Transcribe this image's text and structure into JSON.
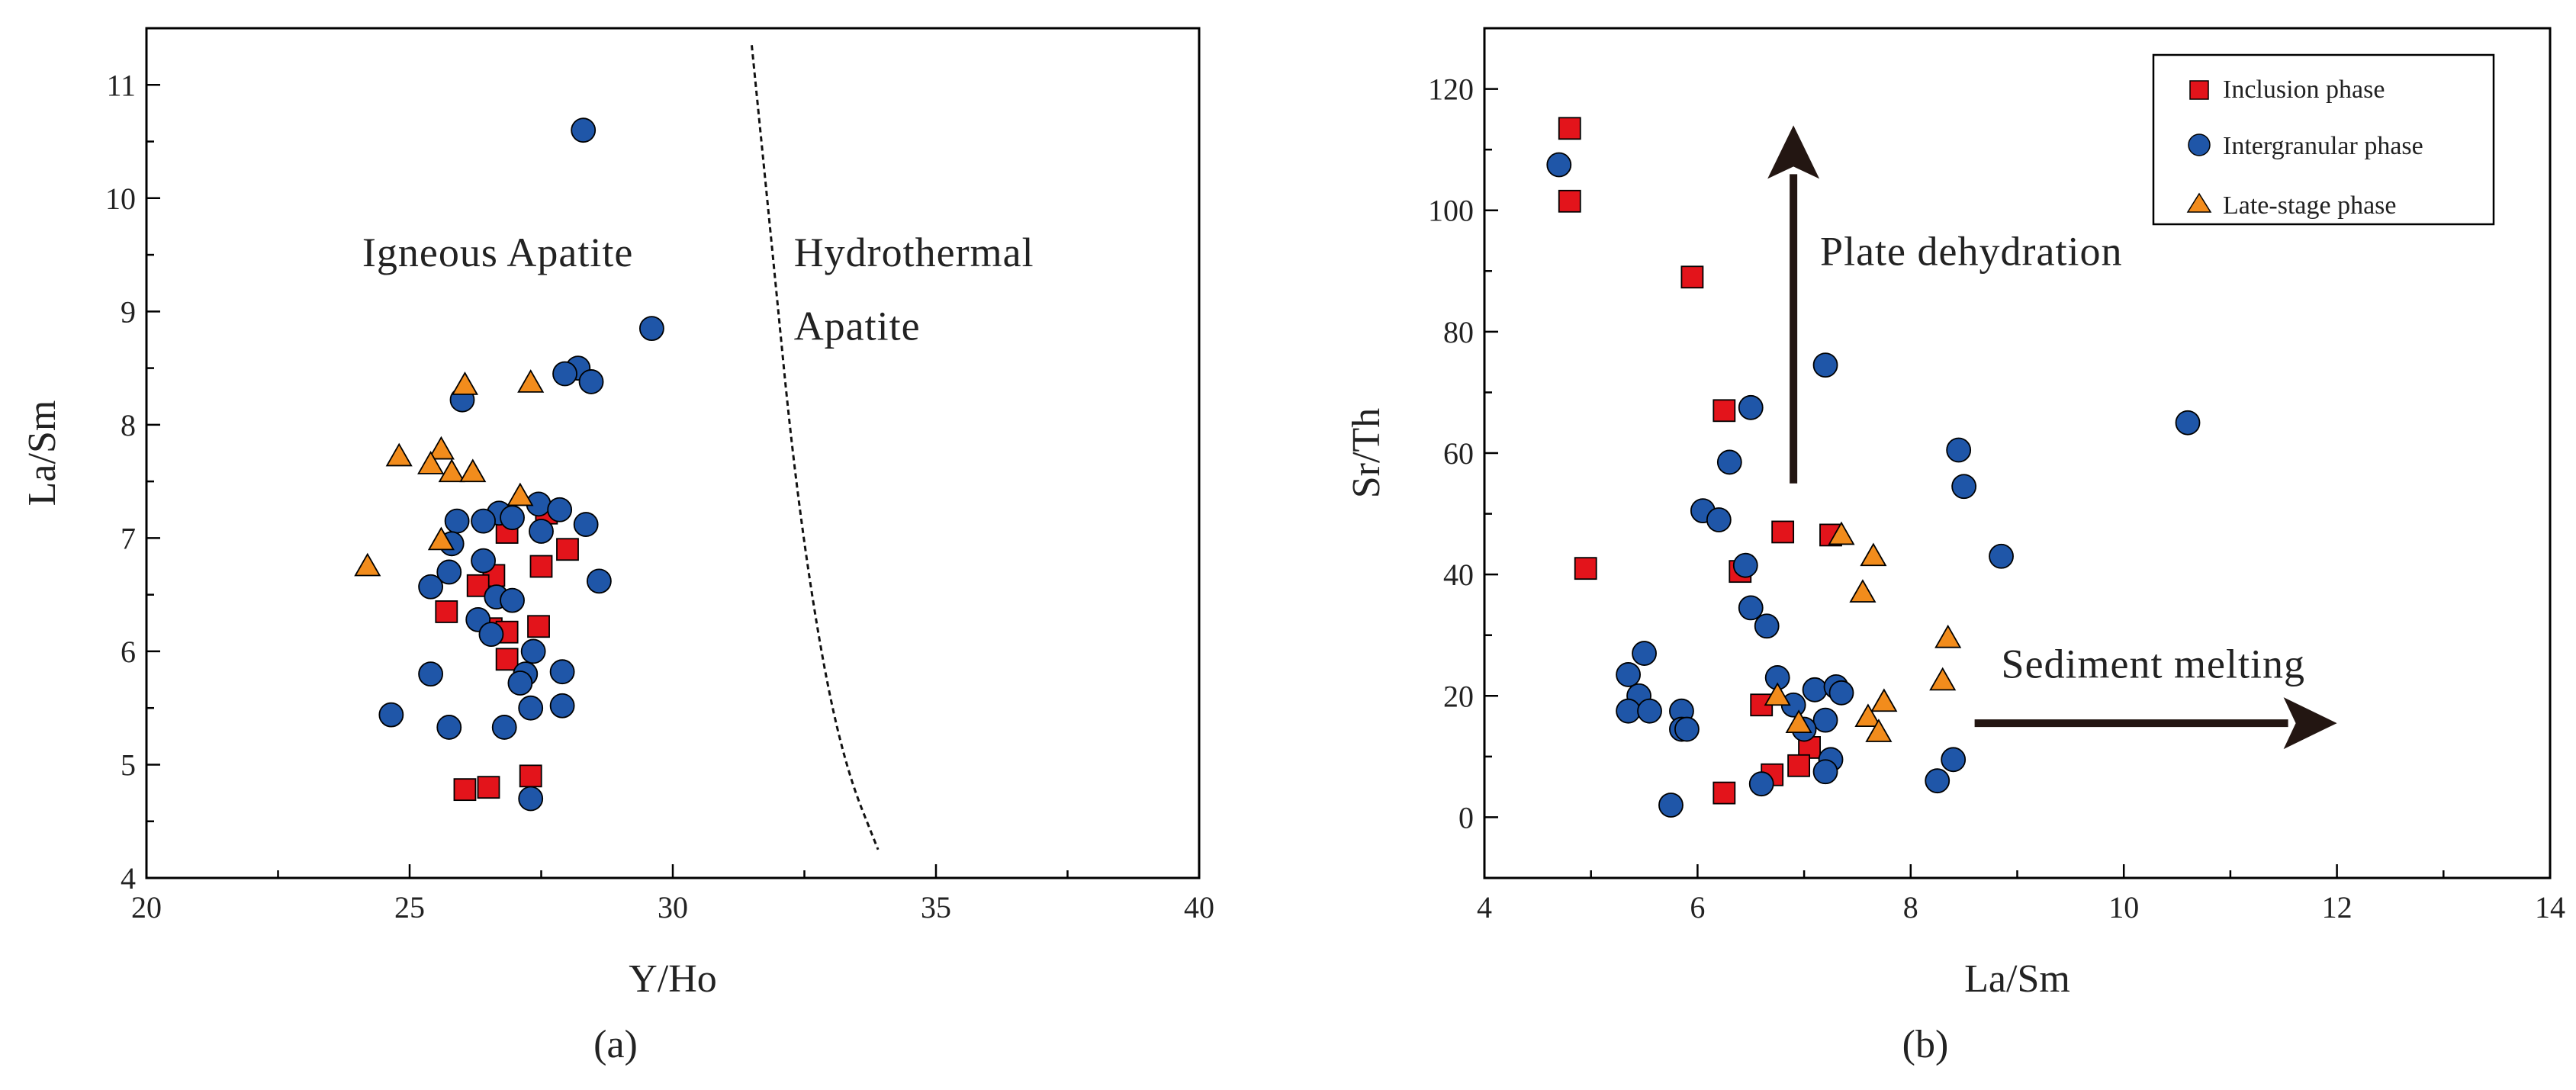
{
  "figure": {
    "panel_a_caption": "(a)",
    "panel_b_caption": "(b)"
  },
  "colors": {
    "inclusion": "#e3141b",
    "intergranular": "#1f56a8",
    "late_stage": "#f28c1c",
    "axis": "#000000",
    "arrow": "#231612"
  },
  "chart_data": [
    {
      "type": "scatter",
      "id": "panel-a",
      "xlabel": "Y/Ho",
      "ylabel": "La/Sm",
      "xlim": [
        20,
        40
      ],
      "ylim": [
        4,
        11.5
      ],
      "xticks": [
        20,
        25,
        30,
        35,
        40
      ],
      "yticks": [
        4,
        5,
        6,
        7,
        8,
        9,
        10,
        11
      ],
      "grid": false,
      "annotations": [
        {
          "text": "Igneous Apatite",
          "x": 24.1,
          "y": 9.4
        },
        {
          "text": "Hydrothermal",
          "x": 32.3,
          "y": 9.4
        },
        {
          "text": "Apatite",
          "x": 32.3,
          "y": 8.75
        }
      ],
      "boundary_curve": [
        [
          31.5,
          11.35
        ],
        [
          31.9,
          9.5
        ],
        [
          32.3,
          7.6
        ],
        [
          32.8,
          6.0
        ],
        [
          33.3,
          4.95
        ],
        [
          33.9,
          4.25
        ]
      ],
      "series": [
        {
          "name": "Inclusion phase",
          "marker": "square",
          "points": [
            [
              27.6,
              7.22
            ],
            [
              26.85,
              7.05
            ],
            [
              28.0,
              6.9
            ],
            [
              27.5,
              6.75
            ],
            [
              26.6,
              6.67
            ],
            [
              26.3,
              6.58
            ],
            [
              25.7,
              6.35
            ],
            [
              27.45,
              6.22
            ],
            [
              26.55,
              6.2
            ],
            [
              26.85,
              6.17
            ],
            [
              26.85,
              5.93
            ],
            [
              27.3,
              4.9
            ],
            [
              26.5,
              4.8
            ],
            [
              26.05,
              4.78
            ]
          ]
        },
        {
          "name": "Intergranular phase",
          "marker": "circle",
          "points": [
            [
              28.3,
              10.6
            ],
            [
              29.6,
              8.85
            ],
            [
              28.2,
              8.5
            ],
            [
              27.95,
              8.45
            ],
            [
              28.45,
              8.38
            ],
            [
              26.0,
              8.22
            ],
            [
              27.45,
              7.3
            ],
            [
              27.85,
              7.25
            ],
            [
              26.7,
              7.22
            ],
            [
              26.95,
              7.18
            ],
            [
              25.9,
              7.15
            ],
            [
              26.4,
              7.15
            ],
            [
              28.35,
              7.12
            ],
            [
              27.5,
              7.06
            ],
            [
              25.8,
              6.95
            ],
            [
              26.4,
              6.8
            ],
            [
              25.75,
              6.7
            ],
            [
              28.6,
              6.62
            ],
            [
              25.4,
              6.57
            ],
            [
              26.65,
              6.48
            ],
            [
              26.95,
              6.45
            ],
            [
              26.3,
              6.28
            ],
            [
              26.55,
              6.15
            ],
            [
              27.35,
              6.0
            ],
            [
              25.4,
              5.8
            ],
            [
              27.2,
              5.8
            ],
            [
              27.9,
              5.82
            ],
            [
              27.1,
              5.72
            ],
            [
              27.3,
              5.5
            ],
            [
              27.9,
              5.52
            ],
            [
              24.65,
              5.44
            ],
            [
              25.75,
              5.33
            ],
            [
              26.8,
              5.33
            ],
            [
              27.3,
              4.7
            ]
          ]
        },
        {
          "name": "Late-stage phase",
          "marker": "triangle",
          "points": [
            [
              26.05,
              8.35
            ],
            [
              27.3,
              8.37
            ],
            [
              25.6,
              7.78
            ],
            [
              24.8,
              7.72
            ],
            [
              25.4,
              7.65
            ],
            [
              25.8,
              7.58
            ],
            [
              26.2,
              7.58
            ],
            [
              27.1,
              7.37
            ],
            [
              25.6,
              6.98
            ],
            [
              24.2,
              6.75
            ]
          ]
        }
      ]
    },
    {
      "type": "scatter",
      "id": "panel-b",
      "xlabel": "La/Sm",
      "ylabel": "Sr/Th",
      "xlim": [
        4,
        14
      ],
      "ylim": [
        -10,
        130
      ],
      "xticks": [
        4,
        6,
        8,
        10,
        12,
        14
      ],
      "yticks": [
        0,
        20,
        40,
        60,
        80,
        100,
        120
      ],
      "grid": false,
      "legend_position": "top-right",
      "annotations": [
        {
          "text": "Plate dehydration",
          "x": 7.15,
          "y": 91
        },
        {
          "text": "Sediment melting",
          "x": 8.85,
          "y": 23
        }
      ],
      "arrows": [
        {
          "name": "plate-dehydration-arrow",
          "from": [
            6.9,
            55
          ],
          "to": [
            6.9,
            114
          ]
        },
        {
          "name": "sediment-melting-arrow",
          "from": [
            8.6,
            15.5
          ],
          "to": [
            12.0,
            15.5
          ]
        }
      ],
      "series": [
        {
          "name": "Inclusion phase",
          "marker": "square",
          "points": [
            [
              4.8,
              113.5
            ],
            [
              4.8,
              101.5
            ],
            [
              5.95,
              89
            ],
            [
              6.25,
              67
            ],
            [
              4.95,
              41
            ],
            [
              6.8,
              47
            ],
            [
              7.25,
              46.5
            ],
            [
              6.4,
              40.5
            ],
            [
              6.6,
              18.5
            ],
            [
              7.05,
              11.5
            ],
            [
              6.95,
              8.5
            ],
            [
              6.7,
              7
            ],
            [
              6.25,
              4
            ]
          ]
        },
        {
          "name": "Intergranular phase",
          "marker": "circle",
          "points": [
            [
              4.7,
              107.5
            ],
            [
              7.2,
              74.5
            ],
            [
              6.5,
              67.5
            ],
            [
              10.6,
              65
            ],
            [
              8.45,
              60.5
            ],
            [
              6.3,
              58.5
            ],
            [
              8.5,
              54.5
            ],
            [
              6.05,
              50.5
            ],
            [
              6.2,
              49
            ],
            [
              8.85,
              43
            ],
            [
              6.45,
              41.5
            ],
            [
              6.5,
              34.5
            ],
            [
              6.65,
              31.5
            ],
            [
              5.5,
              27
            ],
            [
              5.35,
              23.5
            ],
            [
              6.75,
              23
            ],
            [
              7.1,
              21
            ],
            [
              7.3,
              21.5
            ],
            [
              7.35,
              20.5
            ],
            [
              5.45,
              20
            ],
            [
              5.35,
              17.5
            ],
            [
              5.55,
              17.5
            ],
            [
              5.85,
              17.5
            ],
            [
              6.9,
              18.5
            ],
            [
              7.2,
              16
            ],
            [
              7.0,
              14.5
            ],
            [
              5.85,
              14.5
            ],
            [
              5.9,
              14.5
            ],
            [
              7.25,
              9.5
            ],
            [
              8.4,
              9.5
            ],
            [
              7.2,
              7.5
            ],
            [
              8.25,
              6
            ],
            [
              6.6,
              5.5
            ],
            [
              5.75,
              2
            ]
          ]
        },
        {
          "name": "Late-stage phase",
          "marker": "triangle",
          "points": [
            [
              7.35,
              46.5
            ],
            [
              7.65,
              43
            ],
            [
              7.55,
              37
            ],
            [
              8.35,
              29.5
            ],
            [
              8.3,
              22.5
            ],
            [
              6.75,
              20
            ],
            [
              7.75,
              19
            ],
            [
              7.6,
              16.5
            ],
            [
              6.95,
              15.5
            ],
            [
              7.7,
              14
            ]
          ]
        }
      ]
    }
  ]
}
